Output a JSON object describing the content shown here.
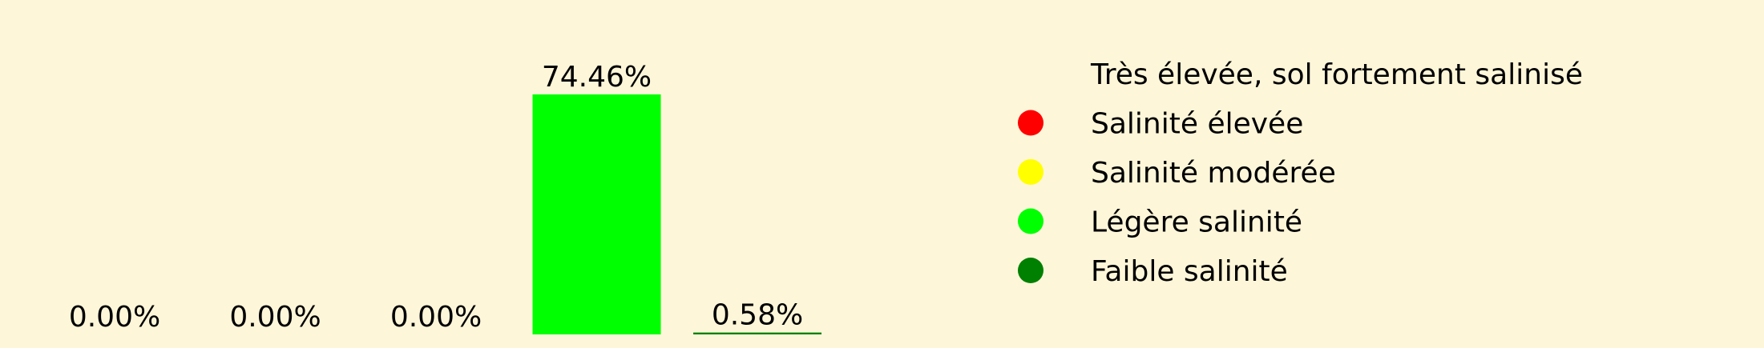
{
  "chart_data": {
    "type": "bar",
    "categories": [
      "Très élevée, sol fortement salinisé",
      "Salinité élevée",
      "Salinité modérée",
      "Légère salinité",
      "Faible salinité"
    ],
    "values": [
      0.0,
      0.0,
      0.0,
      74.46,
      0.58
    ],
    "value_labels": [
      "0.00%",
      "0.00%",
      "0.00%",
      "74.46%",
      "0.58%"
    ],
    "colors": [
      "#fdf6d9",
      "#ff0000",
      "#ffff00",
      "#00ff00",
      "#008000"
    ],
    "legend": {
      "position": "right",
      "entries": [
        {
          "label": "Très élevée, sol fortement salinisé",
          "color": "#fdf6d9"
        },
        {
          "label": "Salinité élevée",
          "color": "#ff0000"
        },
        {
          "label": "Salinité modérée",
          "color": "#ffff00"
        },
        {
          "label": "Légère salinité",
          "color": "#00ff00"
        },
        {
          "label": "Faible salinité",
          "color": "#008000"
        }
      ]
    },
    "ylim": [
      0,
      74.46
    ],
    "grid": false,
    "axes_visible": false,
    "background": "#fdf6d9"
  }
}
